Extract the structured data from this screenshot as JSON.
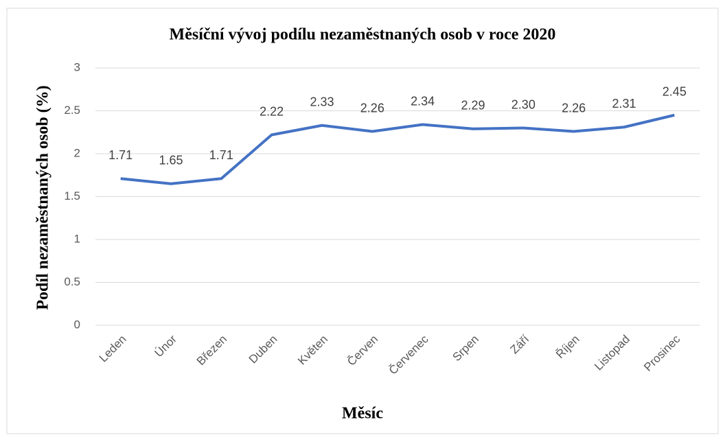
{
  "chart_data": {
    "type": "line",
    "title": "Měsíční vývoj podílu nezaměstnaných osob v roce 2020",
    "x_label": "Měsíc",
    "y_label": "Podíl nezaměstnaných osob (%)",
    "categories": [
      "Leden",
      "Únor",
      "Březen",
      "Duben",
      "Květen",
      "Červen",
      "Červenec",
      "Srpen",
      "Září",
      "Říjen",
      "Listopad",
      "Prosinec"
    ],
    "series": [
      {
        "name": "Podíl",
        "color": "#4472c4",
        "values": [
          1.71,
          1.65,
          1.71,
          2.22,
          2.33,
          2.26,
          2.34,
          2.29,
          2.3,
          2.26,
          2.31,
          2.45
        ],
        "value_labels": [
          "1.71",
          "1.65",
          "1.71",
          "2.22",
          "2.33",
          "2.26",
          "2.34",
          "2.29",
          "2.30",
          "2.26",
          "2.31",
          "2.45"
        ]
      }
    ],
    "ylim": [
      0,
      3
    ],
    "yticks": [
      0,
      0.5,
      1,
      1.5,
      2,
      2.5,
      3
    ],
    "grid": true
  }
}
